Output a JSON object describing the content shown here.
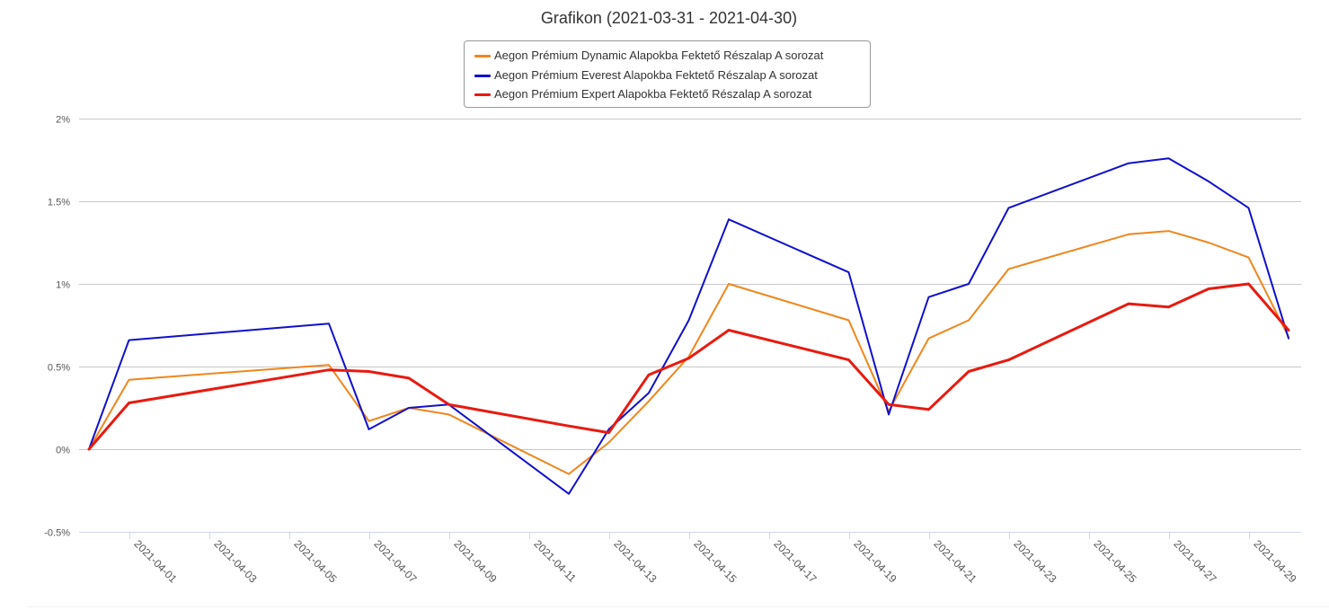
{
  "chart_data": {
    "type": "line",
    "title": "Grafikon (2021-03-31 - 2021-04-30)",
    "xlabel": "",
    "ylabel": "",
    "y_unit": "%",
    "ylim": [
      -0.5,
      2
    ],
    "y_ticks": [
      -0.5,
      0,
      0.5,
      1,
      1.5,
      2
    ],
    "y_tick_labels": [
      "-0.5%",
      "0%",
      "0.5%",
      "1%",
      "1.5%",
      "2%"
    ],
    "x_range": [
      "2021-03-31",
      "2021-04-30"
    ],
    "x_tick_labels": [
      "2021-04-01",
      "2021-04-03",
      "2021-04-05",
      "2021-04-07",
      "2021-04-09",
      "2021-04-11",
      "2021-04-13",
      "2021-04-15",
      "2021-04-17",
      "2021-04-19",
      "2021-04-21",
      "2021-04-23",
      "2021-04-25",
      "2021-04-27",
      "2021-04-29"
    ],
    "grid": true,
    "legend_position": "top-center",
    "x": [
      "2021-03-31",
      "2021-04-01",
      "2021-04-06",
      "2021-04-07",
      "2021-04-08",
      "2021-04-09",
      "2021-04-12",
      "2021-04-13",
      "2021-04-14",
      "2021-04-15",
      "2021-04-16",
      "2021-04-19",
      "2021-04-20",
      "2021-04-21",
      "2021-04-22",
      "2021-04-23",
      "2021-04-26",
      "2021-04-27",
      "2021-04-28",
      "2021-04-29",
      "2021-04-30"
    ],
    "series": [
      {
        "name": "Aegon Prémium Dynamic Alapokba Fektető Részalap A sorozat",
        "color": "#f0861c",
        "width": 2,
        "values": [
          0,
          0.42,
          0.51,
          0.17,
          0.25,
          0.21,
          -0.15,
          0.04,
          0.29,
          0.56,
          1.0,
          0.78,
          0.23,
          0.67,
          0.78,
          1.09,
          1.3,
          1.32,
          1.25,
          1.16,
          0.68
        ]
      },
      {
        "name": "Aegon Prémium Everest Alapokba Fektető Részalap A sorozat",
        "color": "#1010cc",
        "width": 2,
        "values": [
          0,
          0.66,
          0.76,
          0.12,
          0.25,
          0.27,
          -0.27,
          0.12,
          0.34,
          0.78,
          1.39,
          1.07,
          0.21,
          0.92,
          1.0,
          1.46,
          1.73,
          1.76,
          1.62,
          1.46,
          0.67
        ]
      },
      {
        "name": "Aegon Prémium Expert Alapokba Fektető Részalap A sorozat",
        "color": "#e81a10",
        "width": 3,
        "values": [
          0,
          0.28,
          0.48,
          0.47,
          0.43,
          0.27,
          0.14,
          0.1,
          0.45,
          0.55,
          0.72,
          0.54,
          0.27,
          0.24,
          0.47,
          0.54,
          0.88,
          0.86,
          0.97,
          1.0,
          0.72
        ]
      }
    ]
  }
}
